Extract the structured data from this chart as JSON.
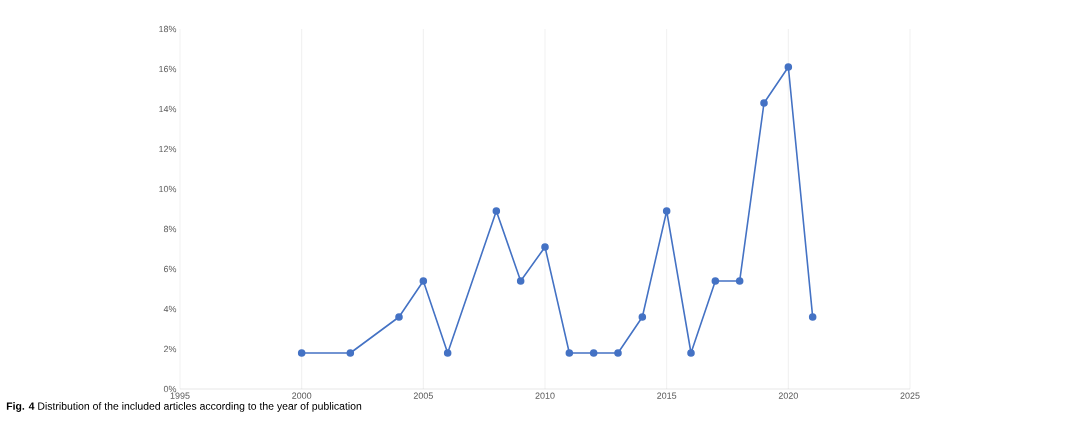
{
  "chart_data": {
    "type": "line",
    "x": [
      2000,
      2002,
      2004,
      2005,
      2006,
      2008,
      2009,
      2010,
      2011,
      2012,
      2013,
      2014,
      2015,
      2016,
      2017,
      2018,
      2019,
      2020,
      2021
    ],
    "series": [
      {
        "color": "#4472c4",
        "values": [
          1.8,
          1.8,
          3.6,
          5.4,
          1.8,
          8.9,
          5.4,
          7.1,
          1.8,
          1.8,
          1.8,
          3.6,
          8.9,
          1.8,
          5.4,
          5.4,
          14.3,
          16.1,
          3.6
        ]
      }
    ],
    "xlim": [
      1995,
      2025
    ],
    "xticks": [
      1995,
      2000,
      2005,
      2010,
      2015,
      2020,
      2025
    ],
    "ylim": [
      0,
      18
    ],
    "yticks": [
      {
        "value": 0,
        "label": "0%"
      },
      {
        "value": 2,
        "label": "2%"
      },
      {
        "value": 4,
        "label": "4%"
      },
      {
        "value": 6,
        "label": "6%"
      },
      {
        "value": 8,
        "label": "8%"
      },
      {
        "value": 10,
        "label": "10%"
      },
      {
        "value": 12,
        "label": "12%"
      },
      {
        "value": 14,
        "label": "14%"
      },
      {
        "value": 16,
        "label": "16%"
      },
      {
        "value": 18,
        "label": "18%"
      }
    ],
    "grid": "x",
    "marker": "circle",
    "line_style": "solid",
    "annotations": [
      "**Fig. 4** Distribution of the included articles according to the year of publication"
    ]
  }
}
